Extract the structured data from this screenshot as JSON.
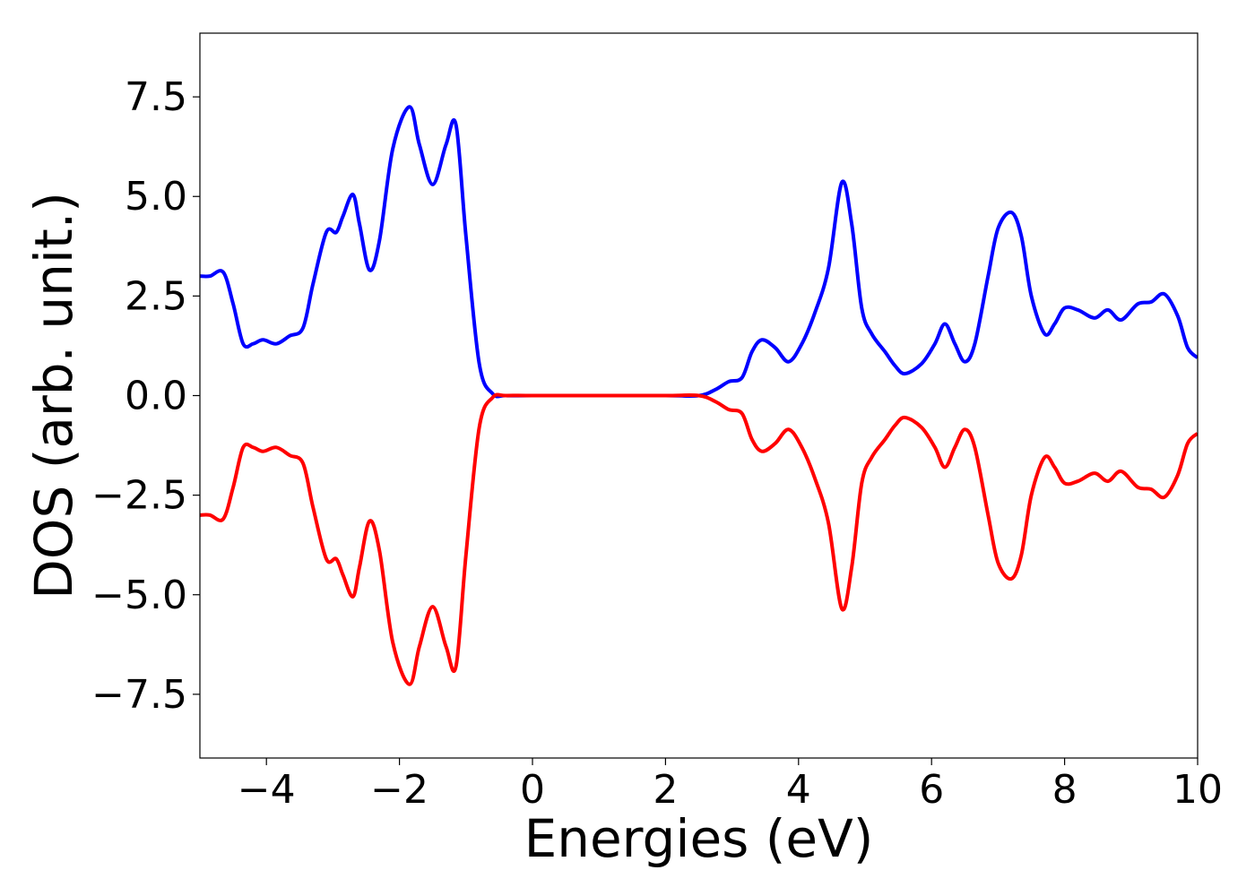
{
  "chart_data": {
    "type": "line",
    "title": "",
    "xlabel": "Energies (eV)",
    "ylabel": "DOS (arb. unit.)",
    "xlim": [
      -5,
      10
    ],
    "ylim": [
      -9.1,
      9.1
    ],
    "grid": false,
    "xticks": [
      -4,
      -2,
      0,
      2,
      4,
      6,
      8,
      10
    ],
    "xtick_labels": [
      "−4",
      "−2",
      "0",
      "2",
      "4",
      "6",
      "8",
      "10"
    ],
    "yticks": [
      7.5,
      5.0,
      2.5,
      0.0,
      -2.5,
      -5.0,
      -7.5
    ],
    "ytick_labels": [
      "7.5",
      "5.0",
      "2.5",
      "0.0",
      "−2.5",
      "−5.0",
      "−7.5"
    ],
    "series": [
      {
        "color": "#0000ff",
        "points": [
          [
            -5.0,
            3.0
          ],
          [
            -4.85,
            3.0
          ],
          [
            -4.65,
            3.1
          ],
          [
            -4.5,
            2.3
          ],
          [
            -4.35,
            1.3
          ],
          [
            -4.2,
            1.3
          ],
          [
            -4.05,
            1.4
          ],
          [
            -3.85,
            1.3
          ],
          [
            -3.65,
            1.5
          ],
          [
            -3.45,
            1.7
          ],
          [
            -3.3,
            2.8
          ],
          [
            -3.1,
            4.1
          ],
          [
            -2.95,
            4.1
          ],
          [
            -2.85,
            4.5
          ],
          [
            -2.7,
            5.05
          ],
          [
            -2.6,
            4.3
          ],
          [
            -2.45,
            3.15
          ],
          [
            -2.3,
            3.9
          ],
          [
            -2.1,
            6.2
          ],
          [
            -1.85,
            7.25
          ],
          [
            -1.7,
            6.3
          ],
          [
            -1.5,
            5.3
          ],
          [
            -1.3,
            6.3
          ],
          [
            -1.15,
            6.8
          ],
          [
            -1.0,
            4.0
          ],
          [
            -0.8,
            0.8
          ],
          [
            -0.6,
            0.05
          ],
          [
            -0.4,
            0.0
          ],
          [
            0.0,
            0.0
          ],
          [
            1.0,
            0.0
          ],
          [
            2.0,
            0.0
          ],
          [
            2.5,
            0.0
          ],
          [
            2.75,
            0.15
          ],
          [
            2.95,
            0.35
          ],
          [
            3.15,
            0.45
          ],
          [
            3.3,
            1.1
          ],
          [
            3.45,
            1.4
          ],
          [
            3.65,
            1.2
          ],
          [
            3.85,
            0.85
          ],
          [
            4.05,
            1.3
          ],
          [
            4.25,
            2.1
          ],
          [
            4.45,
            3.2
          ],
          [
            4.65,
            5.35
          ],
          [
            4.8,
            4.3
          ],
          [
            4.95,
            2.2
          ],
          [
            5.1,
            1.55
          ],
          [
            5.3,
            1.1
          ],
          [
            5.45,
            0.75
          ],
          [
            5.6,
            0.55
          ],
          [
            5.85,
            0.8
          ],
          [
            6.05,
            1.3
          ],
          [
            6.2,
            1.8
          ],
          [
            6.35,
            1.3
          ],
          [
            6.5,
            0.85
          ],
          [
            6.65,
            1.3
          ],
          [
            6.85,
            3.0
          ],
          [
            7.0,
            4.2
          ],
          [
            7.2,
            4.6
          ],
          [
            7.35,
            4.0
          ],
          [
            7.5,
            2.5
          ],
          [
            7.7,
            1.55
          ],
          [
            7.85,
            1.8
          ],
          [
            8.0,
            2.2
          ],
          [
            8.2,
            2.15
          ],
          [
            8.45,
            1.95
          ],
          [
            8.65,
            2.15
          ],
          [
            8.85,
            1.9
          ],
          [
            9.1,
            2.3
          ],
          [
            9.3,
            2.35
          ],
          [
            9.5,
            2.55
          ],
          [
            9.7,
            2.0
          ],
          [
            9.85,
            1.2
          ],
          [
            10.0,
            0.95
          ]
        ]
      },
      {
        "color": "#ff0000",
        "points": [
          [
            -5.0,
            -3.0
          ],
          [
            -4.85,
            -3.0
          ],
          [
            -4.65,
            -3.1
          ],
          [
            -4.5,
            -2.3
          ],
          [
            -4.35,
            -1.3
          ],
          [
            -4.2,
            -1.3
          ],
          [
            -4.05,
            -1.4
          ],
          [
            -3.85,
            -1.3
          ],
          [
            -3.65,
            -1.5
          ],
          [
            -3.45,
            -1.7
          ],
          [
            -3.3,
            -2.8
          ],
          [
            -3.1,
            -4.1
          ],
          [
            -2.95,
            -4.1
          ],
          [
            -2.85,
            -4.5
          ],
          [
            -2.7,
            -5.05
          ],
          [
            -2.6,
            -4.3
          ],
          [
            -2.45,
            -3.15
          ],
          [
            -2.3,
            -3.9
          ],
          [
            -2.1,
            -6.2
          ],
          [
            -1.85,
            -7.25
          ],
          [
            -1.7,
            -6.3
          ],
          [
            -1.5,
            -5.3
          ],
          [
            -1.3,
            -6.3
          ],
          [
            -1.15,
            -6.8
          ],
          [
            -1.0,
            -4.0
          ],
          [
            -0.8,
            -0.8
          ],
          [
            -0.6,
            -0.05
          ],
          [
            -0.4,
            0.0
          ],
          [
            0.0,
            0.0
          ],
          [
            1.0,
            0.0
          ],
          [
            2.0,
            0.0
          ],
          [
            2.5,
            0.0
          ],
          [
            2.75,
            -0.15
          ],
          [
            2.95,
            -0.35
          ],
          [
            3.15,
            -0.45
          ],
          [
            3.3,
            -1.1
          ],
          [
            3.45,
            -1.4
          ],
          [
            3.65,
            -1.2
          ],
          [
            3.85,
            -0.85
          ],
          [
            4.05,
            -1.3
          ],
          [
            4.25,
            -2.1
          ],
          [
            4.45,
            -3.2
          ],
          [
            4.65,
            -5.35
          ],
          [
            4.8,
            -4.3
          ],
          [
            4.95,
            -2.2
          ],
          [
            5.1,
            -1.55
          ],
          [
            5.3,
            -1.1
          ],
          [
            5.45,
            -0.75
          ],
          [
            5.6,
            -0.55
          ],
          [
            5.85,
            -0.8
          ],
          [
            6.05,
            -1.3
          ],
          [
            6.2,
            -1.8
          ],
          [
            6.35,
            -1.3
          ],
          [
            6.5,
            -0.85
          ],
          [
            6.65,
            -1.3
          ],
          [
            6.85,
            -3.0
          ],
          [
            7.0,
            -4.2
          ],
          [
            7.2,
            -4.6
          ],
          [
            7.35,
            -4.0
          ],
          [
            7.5,
            -2.5
          ],
          [
            7.7,
            -1.55
          ],
          [
            7.85,
            -1.8
          ],
          [
            8.0,
            -2.2
          ],
          [
            8.2,
            -2.15
          ],
          [
            8.45,
            -1.95
          ],
          [
            8.65,
            -2.15
          ],
          [
            8.85,
            -1.9
          ],
          [
            9.1,
            -2.3
          ],
          [
            9.3,
            -2.35
          ],
          [
            9.5,
            -2.55
          ],
          [
            9.7,
            -2.0
          ],
          [
            9.85,
            -1.2
          ],
          [
            10.0,
            -0.95
          ]
        ]
      }
    ]
  }
}
